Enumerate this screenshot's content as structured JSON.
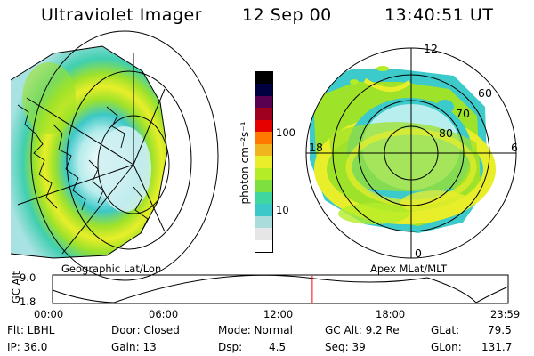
{
  "header": {
    "instrument": "Ultraviolet Imager",
    "date": "12 Sep 00",
    "time": "13:40:51 UT"
  },
  "colors": {
    "aurora_low": "#22c8c8",
    "aurora_mid": "#99e628",
    "aurora_high": "#e8e830",
    "marker": "#ff0000"
  },
  "left_panel": {
    "label": "Geographic Lat/Lon"
  },
  "right_panel": {
    "label": "Apex  MLat/MLT",
    "mlt_labels": {
      "top": "12",
      "left": "18",
      "right": "6",
      "bottom": "0"
    },
    "mlat_labels": [
      "60",
      "70",
      "80"
    ]
  },
  "colorbar": {
    "unit": "photon cm⁻²s⁻¹",
    "ticks": [
      "100",
      "10"
    ],
    "colors": [
      "#ffffff",
      "#e6e6e6",
      "#aadcdc",
      "#3cc8c8",
      "#40d6a0",
      "#7ee040",
      "#b4ec28",
      "#e8ee2a",
      "#f0b41e",
      "#ff7800",
      "#e60000",
      "#a00020",
      "#5a0050",
      "#000040",
      "#000000"
    ]
  },
  "altitude_plot": {
    "ylabel": "GC Alt",
    "yticks": [
      "9.0",
      "1.8"
    ],
    "xticks": [
      "00:00",
      "06:00",
      "12:00",
      "18:00",
      "23:59"
    ],
    "marker_fraction": 0.5701
  },
  "info": {
    "flt": "Flt: LBHL",
    "ip": "IP: 36.0",
    "door": "Door: Closed",
    "gain": "Gain: 13",
    "mode": "Mode: Normal",
    "dsp_label": "Dsp:",
    "dsp_value": "4.5",
    "gc_alt": "GC Alt: 9.2 Re",
    "seq": "Seq: 39",
    "glat_label": "GLat:",
    "glat_value": "79.5",
    "glon_label": "GLon:",
    "glon_value": "131.7"
  }
}
